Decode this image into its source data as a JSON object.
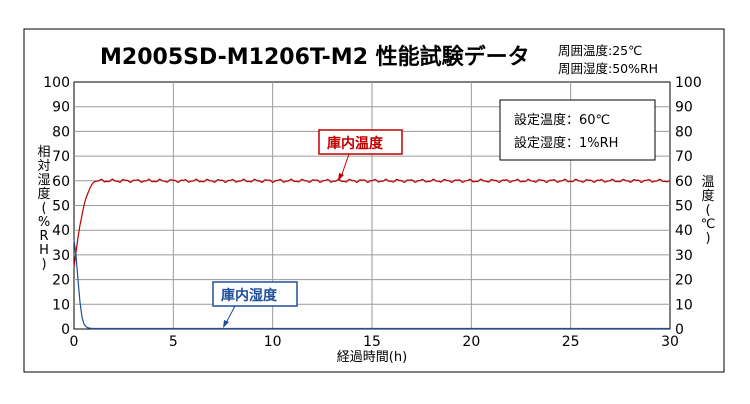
{
  "chart_data": {
    "type": "line",
    "title": "M2005SD-M1206T-M2 性能試験データ",
    "ambient": [
      "周囲温度:25℃",
      "周囲湿度:50%RH"
    ],
    "xlabel": "経過時間(h)",
    "ylabel_left": "相対湿度(%RH)",
    "ylabel_right": "温度(℃)",
    "xlim": [
      0,
      30
    ],
    "ylim_left": [
      0,
      100
    ],
    "ylim_right": [
      0,
      100
    ],
    "x_ticks": [
      0,
      5,
      10,
      15,
      20,
      25,
      30
    ],
    "y_ticks": [
      0,
      10,
      20,
      30,
      40,
      50,
      60,
      70,
      80,
      90,
      100
    ],
    "grid": true,
    "settings": [
      "設定温度：60℃",
      "設定湿度：1%RH"
    ],
    "series": [
      {
        "name": "庫内温度",
        "color": "#c00000",
        "axis": "right",
        "x": [
          0,
          0.1,
          0.2,
          0.3,
          0.4,
          0.5,
          0.6,
          0.7,
          0.8,
          0.9,
          1.0,
          1.2,
          1.4,
          1.6,
          1.8,
          2.0,
          3,
          4,
          5,
          6,
          7,
          8,
          9,
          10,
          11,
          12,
          13,
          14,
          15,
          16,
          17,
          18,
          19,
          20,
          21,
          22,
          23,
          24,
          25,
          26,
          27,
          28,
          29,
          30
        ],
        "values": [
          25,
          31,
          37,
          42,
          46,
          50,
          53,
          55,
          57,
          58.5,
          59.5,
          60,
          60,
          60,
          60,
          60,
          60,
          60,
          60,
          60,
          60,
          60,
          60,
          60,
          60,
          60,
          60,
          60,
          60,
          60,
          60,
          60,
          60,
          60,
          60,
          60,
          60,
          60,
          60,
          60,
          60,
          60,
          60,
          60
        ]
      },
      {
        "name": "庫内湿度",
        "color": "#1f4e9a",
        "axis": "left",
        "x": [
          0,
          0.1,
          0.2,
          0.3,
          0.4,
          0.5,
          0.6,
          0.7,
          0.8,
          1.0,
          2,
          5,
          10,
          15,
          20,
          25,
          30
        ],
        "values": [
          36,
          30,
          20,
          11,
          5,
          2,
          1,
          0.5,
          0.3,
          0.2,
          0.2,
          0.2,
          0.2,
          0.2,
          0.2,
          0.2,
          0.2
        ]
      }
    ],
    "annotations": [
      "庫内温度",
      "庫内湿度"
    ]
  }
}
